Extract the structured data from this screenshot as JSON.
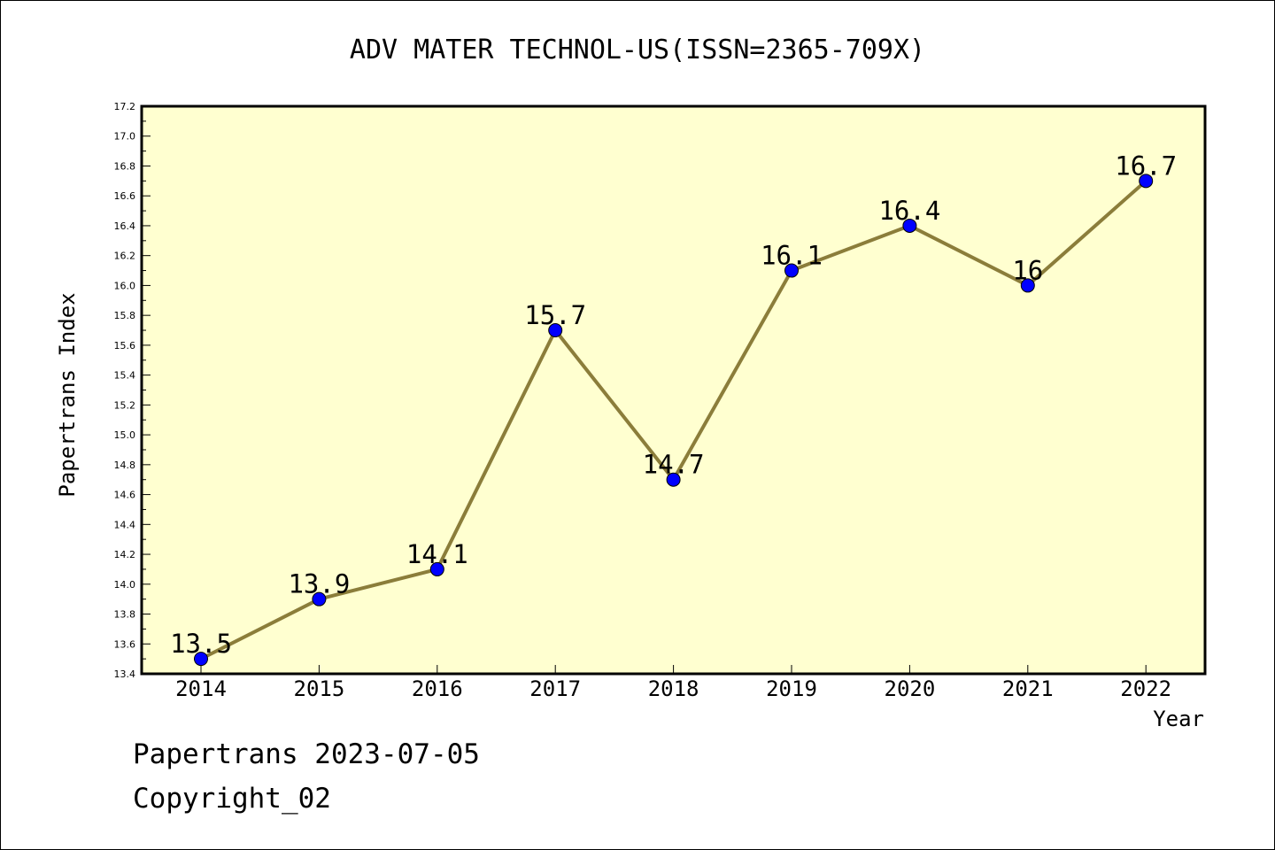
{
  "chart_data": {
    "type": "line",
    "title": "ADV MATER TECHNOL-US(ISSN=2365-709X)",
    "xlabel": "Year",
    "ylabel": "Papertrans Index",
    "categories": [
      "2014",
      "2015",
      "2016",
      "2017",
      "2018",
      "2019",
      "2020",
      "2021",
      "2022"
    ],
    "series": [
      {
        "values": [
          13.5,
          13.9,
          14.1,
          15.7,
          14.7,
          16.1,
          16.4,
          16.0,
          16.7
        ],
        "labels": [
          "13.5",
          "13.9",
          "14.1",
          "15.7",
          "14.7",
          "16.1",
          "16.4",
          "16",
          "16.7"
        ],
        "line_color": "#8b7d3a",
        "marker_color": "#0000ff"
      }
    ],
    "ylim": [
      13.4,
      17.2
    ],
    "yticks": [
      "13.4",
      "13.6",
      "13.8",
      "14.0",
      "14.2",
      "14.4",
      "14.6",
      "14.8",
      "15.0",
      "15.2",
      "15.4",
      "15.6",
      "15.8",
      "16.0",
      "16.2",
      "16.4",
      "16.6",
      "16.8",
      "17.0",
      "17.2"
    ],
    "plot_background": "#ffffd0",
    "grid": false
  },
  "footer": {
    "line1": "Papertrans 2023-07-05",
    "line2": "Copyright_02"
  }
}
